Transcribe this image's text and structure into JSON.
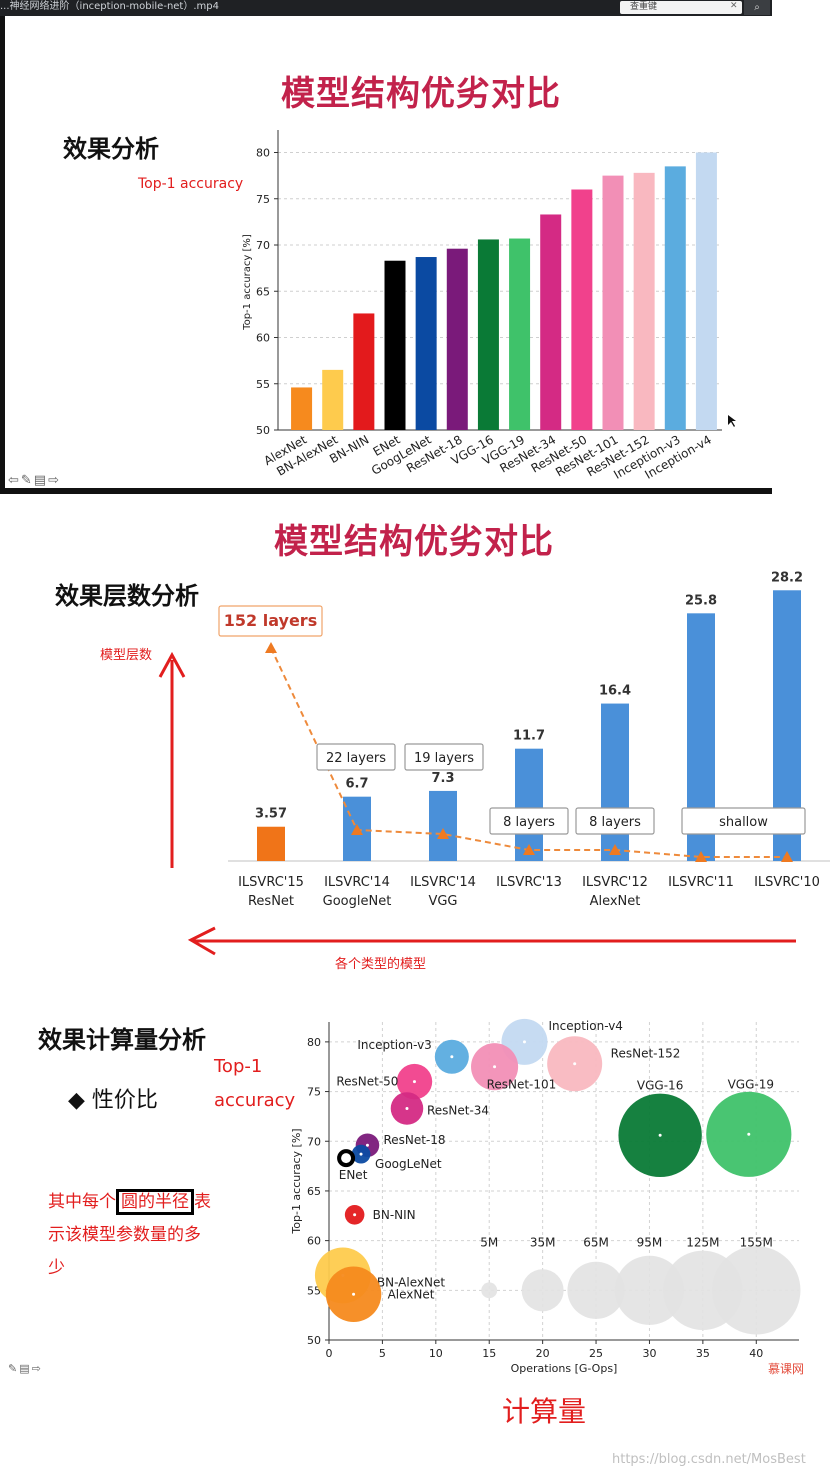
{
  "window": {
    "title": "...神经网络进阶（inception-mobile-net）.mp4",
    "search_placeholder": "查重键"
  },
  "slide1": {
    "title": "模型结构优劣对比",
    "subtitle": "效果分析",
    "annotation": "Top-1 accuracy"
  },
  "slide2": {
    "title": "模型结构优劣对比",
    "subtitle": "效果层数分析",
    "annotation_y": "模型层数",
    "annotation_x": "各个类型的模型",
    "layer_boxes": [
      "152 layers",
      "22 layers",
      "19 layers",
      "8 layers",
      "8 layers",
      "shallow"
    ]
  },
  "slide3": {
    "subtitle": "效果计算量分析",
    "bullet": "◆ 性价比",
    "annotation_y1": "Top-1",
    "annotation_y2": "accuracy",
    "note_line1_pre": "其中每个",
    "note_line1_box": "圆的半径",
    "note_line1_post": "表",
    "note_line2": "示该模型参数量的多",
    "note_line3": "少",
    "annotation_x": "计算量",
    "logo": "慕课网"
  },
  "watermark": "https://blog.csdn.net/MosBest",
  "colors": {
    "title_red": "#c2224b",
    "annotation_red": "#e21e1e",
    "bar_blue": "#4a90d9",
    "bar_orange": "#f07418"
  },
  "chart_data": [
    {
      "type": "bar",
      "ylabel": "Top-1 accuracy [%]",
      "ylim": [
        50,
        82
      ],
      "yticks": [
        50,
        55,
        60,
        65,
        70,
        75,
        80
      ],
      "grid": true,
      "categories": [
        "AlexNet",
        "BN-AlexNet",
        "BN-NIN",
        "ENet",
        "GoogLeNet",
        "ResNet-18",
        "VGG-16",
        "VGG-19",
        "ResNet-34",
        "ResNet-50",
        "ResNet-101",
        "ResNet-152",
        "Inception-v3",
        "Inception-v4"
      ],
      "values": [
        54.6,
        56.5,
        62.6,
        68.3,
        68.7,
        69.6,
        70.6,
        70.7,
        73.3,
        76.0,
        77.5,
        77.8,
        78.5,
        80.0
      ],
      "colors": [
        "#f68a1e",
        "#fecb4d",
        "#e31a1c",
        "#000000",
        "#0b4aa2",
        "#7a1a7a",
        "#0a7a36",
        "#3fc26a",
        "#d42a84",
        "#f1418c",
        "#f28fb6",
        "#f9b8c0",
        "#5bacdf",
        "#c3d9f1"
      ]
    },
    {
      "type": "bar",
      "categories": [
        "ILSVRC'15\nResNet",
        "ILSVRC'14\nGoogleNet",
        "ILSVRC'14\nVGG",
        "ILSVRC'13",
        "ILSVRC'12\nAlexNet",
        "ILSVRC'11",
        "ILSVRC'10"
      ],
      "category_line1": [
        "ILSVRC'15",
        "ILSVRC'14",
        "ILSVRC'14",
        "ILSVRC'13",
        "ILSVRC'12",
        "ILSVRC'11",
        "ILSVRC'10"
      ],
      "category_line2": [
        "ResNet",
        "GoogleNet",
        "VGG",
        "",
        "AlexNet",
        "",
        ""
      ],
      "values": [
        3.57,
        6.7,
        7.3,
        11.7,
        16.4,
        25.8,
        28.2
      ],
      "value_labels": [
        "3.57",
        "6.7",
        "7.3",
        "11.7",
        "16.4",
        "25.8",
        "28.2"
      ],
      "layers": [
        152,
        22,
        19,
        8,
        8,
        0,
        0
      ],
      "ylim": [
        0,
        30
      ]
    },
    {
      "type": "scatter",
      "xlabel": "Operations [G-Ops]",
      "ylabel": "Top-1 accuracy [%]",
      "xlim": [
        0,
        44
      ],
      "ylim": [
        50,
        82
      ],
      "xticks": [
        0,
        5,
        10,
        15,
        20,
        25,
        30,
        35,
        40
      ],
      "yticks": [
        50,
        55,
        60,
        65,
        70,
        75,
        80
      ],
      "grid": true,
      "points": [
        {
          "name": "Inception-v4",
          "x": 18.3,
          "y": 80.0,
          "params": 42,
          "color": "#c3d9f1"
        },
        {
          "name": "Inception-v3",
          "x": 11.5,
          "y": 78.5,
          "params": 23,
          "color": "#5bacdf"
        },
        {
          "name": "ResNet-152",
          "x": 23.0,
          "y": 77.8,
          "params": 60,
          "color": "#f9b8c0"
        },
        {
          "name": "ResNet-101",
          "x": 15.5,
          "y": 77.5,
          "params": 44,
          "color": "#f28fb6"
        },
        {
          "name": "ResNet-50",
          "x": 8.0,
          "y": 76.0,
          "params": 25,
          "color": "#f1418c"
        },
        {
          "name": "ResNet-34",
          "x": 7.3,
          "y": 73.3,
          "params": 21,
          "color": "#d42a84"
        },
        {
          "name": "VGG-16",
          "x": 31.0,
          "y": 70.6,
          "params": 138,
          "color": "#0a7a36"
        },
        {
          "name": "VGG-19",
          "x": 39.3,
          "y": 70.7,
          "params": 144,
          "color": "#3fc26a"
        },
        {
          "name": "ResNet-18",
          "x": 3.6,
          "y": 69.6,
          "params": 11,
          "color": "#7a1a7a"
        },
        {
          "name": "GoogLeNet",
          "x": 3.0,
          "y": 68.7,
          "params": 7,
          "color": "#0b4aa2"
        },
        {
          "name": "ENet",
          "x": 1.6,
          "y": 68.3,
          "params": 0.4,
          "color": "#000000"
        },
        {
          "name": "BN-NIN",
          "x": 2.4,
          "y": 62.6,
          "params": 7.6,
          "color": "#e31a1c"
        },
        {
          "name": "BN-AlexNet",
          "x": 1.3,
          "y": 56.5,
          "params": 62,
          "color": "#fecb4d"
        },
        {
          "name": "AlexNet",
          "x": 2.3,
          "y": 54.6,
          "params": 61,
          "color": "#f68a1e"
        }
      ],
      "size_legend": {
        "labels": [
          "5M",
          "35M",
          "65M",
          "95M",
          "125M",
          "155M"
        ],
        "x": [
          15,
          20,
          25,
          30,
          35,
          40
        ],
        "params": [
          5,
          35,
          65,
          95,
          125,
          155
        ],
        "y": 55,
        "color": "#e2e2e2"
      }
    }
  ]
}
